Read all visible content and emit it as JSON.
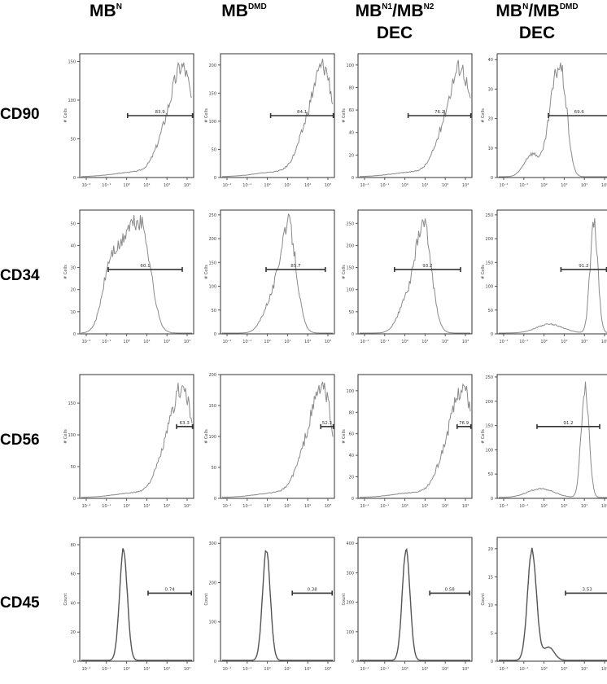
{
  "columns": [
    {
      "base": "MB",
      "sup": "N",
      "base2": "",
      "sup2": "",
      "line2": ""
    },
    {
      "base": "MB",
      "sup": "DMD",
      "base2": "",
      "sup2": "",
      "line2": ""
    },
    {
      "base": "MB",
      "sup": "N1",
      "base2": "/MB",
      "sup2": "N2",
      "line2": "DEC"
    },
    {
      "base": "MB",
      "sup": "N",
      "base2": "/MB",
      "sup2": "DMD",
      "line2": "DEC"
    }
  ],
  "rows": [
    "CD90",
    "CD34",
    "CD56",
    "CD45"
  ],
  "chart_data": {
    "type": "histogram-grid",
    "x_ticks": [
      "10⁻²",
      "10⁻¹",
      "10⁰",
      "10¹",
      "10²",
      "10³"
    ],
    "panels": [
      {
        "row": "CD90",
        "col": 0,
        "ylabel": "# Cells",
        "yticks": [
          0,
          50,
          100,
          150
        ],
        "ymax": 160,
        "gate": "83.9",
        "gate_range": [
          0.42,
          0.99
        ],
        "peak": 0.93,
        "shape": "right"
      },
      {
        "row": "CD90",
        "col": 1,
        "ylabel": "# Cells",
        "yticks": [
          0,
          50,
          100,
          150,
          200
        ],
        "ymax": 220,
        "gate": "84.1",
        "gate_range": [
          0.44,
          0.99
        ],
        "peak": 0.93,
        "shape": "right"
      },
      {
        "row": "CD90",
        "col": 2,
        "ylabel": "# Cells",
        "yticks": [
          0,
          20,
          40,
          60,
          80,
          100
        ],
        "ymax": 110,
        "gate": "76.2",
        "gate_range": [
          0.44,
          0.99
        ],
        "peak": 0.93,
        "shape": "right"
      },
      {
        "row": "CD90",
        "col": 3,
        "ylabel": "# Cells",
        "yticks": [
          0,
          10,
          20,
          30,
          40
        ],
        "ymax": 42,
        "gate": "69.6",
        "gate_range": [
          0.45,
          0.99
        ],
        "peak": 0.5,
        "shape": "bimodal-right"
      },
      {
        "row": "CD34",
        "col": 0,
        "ylabel": "# Cells",
        "yticks": [
          0,
          10,
          20,
          30,
          40,
          50
        ],
        "ymax": 56,
        "gate": "60.1",
        "gate_range": [
          0.25,
          0.9
        ],
        "peak": 0.55,
        "shape": "bimodal-mid"
      },
      {
        "row": "CD34",
        "col": 1,
        "ylabel": "# Cells",
        "yticks": [
          0,
          50,
          100,
          150,
          200,
          250
        ],
        "ymax": 260,
        "gate": "85.7",
        "gate_range": [
          0.4,
          0.92
        ],
        "peak": 0.6,
        "shape": "mid"
      },
      {
        "row": "CD34",
        "col": 2,
        "ylabel": "# Cells",
        "yticks": [
          0,
          50,
          100,
          150,
          200,
          250
        ],
        "ymax": 280,
        "gate": "93.2",
        "gate_range": [
          0.32,
          0.9
        ],
        "peak": 0.58,
        "shape": "mid"
      },
      {
        "row": "CD34",
        "col": 3,
        "ylabel": "# Cells",
        "yticks": [
          0,
          50,
          100,
          150,
          200,
          250
        ],
        "ymax": 260,
        "gate": "91.2",
        "gate_range": [
          0.56,
          0.96
        ],
        "peak": 0.86,
        "shape": "right-narrow"
      },
      {
        "row": "CD56",
        "col": 0,
        "ylabel": "# Cells",
        "yticks": [
          0,
          50,
          100,
          150
        ],
        "ymax": 195,
        "gate": "63.3",
        "gate_range": [
          0.85,
          0.99
        ],
        "peak": 0.93,
        "shape": "right"
      },
      {
        "row": "CD56",
        "col": 1,
        "ylabel": "# Cells",
        "yticks": [
          0,
          50,
          100,
          150,
          200
        ],
        "ymax": 200,
        "gate": "52.3",
        "gate_range": [
          0.88,
          0.99
        ],
        "peak": 0.92,
        "shape": "right"
      },
      {
        "row": "CD56",
        "col": 2,
        "ylabel": "# Cells",
        "yticks": [
          0,
          20,
          40,
          60,
          80,
          100
        ],
        "ymax": 115,
        "gate": "76.9",
        "gate_range": [
          0.87,
          0.99
        ],
        "peak": 0.95,
        "shape": "right"
      },
      {
        "row": "CD56",
        "col": 3,
        "ylabel": "# Cells",
        "yticks": [
          0,
          50,
          100,
          150,
          200,
          250
        ],
        "ymax": 255,
        "gate": "91.2",
        "gate_range": [
          0.35,
          0.9
        ],
        "peak": 0.78,
        "shape": "right-narrow"
      },
      {
        "row": "CD45",
        "col": 0,
        "ylabel": "Count",
        "yticks": [
          0,
          20,
          40,
          60,
          80
        ],
        "ymax": 85,
        "gate": "0.74",
        "gate_range": [
          0.6,
          0.98
        ],
        "peak": 0.38,
        "shape": "narrow"
      },
      {
        "row": "CD45",
        "col": 1,
        "ylabel": "Count",
        "yticks": [
          0,
          100,
          200,
          300
        ],
        "ymax": 315,
        "gate": "0.38",
        "gate_range": [
          0.63,
          0.98
        ],
        "peak": 0.4,
        "shape": "narrow"
      },
      {
        "row": "CD45",
        "col": 2,
        "ylabel": "Count",
        "yticks": [
          0,
          100,
          200,
          300,
          400
        ],
        "ymax": 420,
        "gate": "0.58",
        "gate_range": [
          0.63,
          0.98
        ],
        "peak": 0.42,
        "shape": "narrow"
      },
      {
        "row": "CD45",
        "col": 3,
        "ylabel": "Count",
        "yticks": [
          0,
          5,
          10,
          15,
          20
        ],
        "ymax": 22,
        "gate": "3.53",
        "gate_range": [
          0.6,
          0.98
        ],
        "peak": 0.3,
        "shape": "narrow-tail"
      }
    ]
  }
}
